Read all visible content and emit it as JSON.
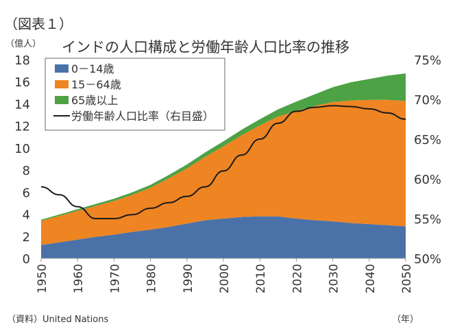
{
  "figure_label": "（図表１）",
  "units_left": "（億人）",
  "units_bottom": "（年）",
  "source": "（資料）United Nations",
  "chart_data": {
    "type": "area",
    "title": "インドの人口構成と労働年齢人口比率の推移",
    "x": [
      1950,
      1955,
      1960,
      1965,
      1970,
      1975,
      1980,
      1985,
      1990,
      1995,
      2000,
      2005,
      2010,
      2015,
      2020,
      2025,
      2030,
      2035,
      2040,
      2045,
      2050
    ],
    "xticks": [
      "1950",
      "1960",
      "1970",
      "1980",
      "1990",
      "2000",
      "2010",
      "2020",
      "2030",
      "2040",
      "2050"
    ],
    "ylim": [
      0,
      18
    ],
    "yticks": [
      "0",
      "2",
      "4",
      "6",
      "8",
      "10",
      "12",
      "14",
      "16",
      "18"
    ],
    "y2lim": [
      50,
      75
    ],
    "y2ticks": [
      "50%",
      "55%",
      "60%",
      "65%",
      "70%",
      "75%"
    ],
    "series": [
      {
        "name": "0－14歳",
        "kind": "area",
        "color": "#4a72a8",
        "values": [
          1.2,
          1.45,
          1.7,
          1.95,
          2.15,
          2.4,
          2.6,
          2.85,
          3.15,
          3.45,
          3.6,
          3.75,
          3.8,
          3.8,
          3.6,
          3.45,
          3.35,
          3.2,
          3.1,
          3.0,
          2.9
        ]
      },
      {
        "name": "15－64歳",
        "kind": "area",
        "color": "#ee8422",
        "values": [
          2.2,
          2.4,
          2.6,
          2.8,
          3.05,
          3.35,
          3.8,
          4.4,
          5.0,
          5.75,
          6.55,
          7.4,
          8.25,
          9.05,
          9.75,
          10.35,
          10.8,
          11.1,
          11.25,
          11.35,
          11.35
        ]
      },
      {
        "name": "65歳以上",
        "kind": "area",
        "color": "#4da245",
        "values": [
          0.1,
          0.12,
          0.15,
          0.18,
          0.2,
          0.23,
          0.26,
          0.3,
          0.35,
          0.4,
          0.45,
          0.5,
          0.55,
          0.65,
          0.85,
          1.05,
          1.35,
          1.65,
          1.9,
          2.2,
          2.5
        ]
      },
      {
        "name": "労働年齢人口比率（右目盛）",
        "kind": "line",
        "color": "#1a1a1a",
        "axis": "right",
        "values": [
          59.0,
          58.0,
          56.5,
          55.0,
          55.0,
          55.5,
          56.3,
          57.0,
          57.8,
          59.0,
          61.0,
          63.0,
          65.0,
          67.0,
          68.5,
          69.0,
          69.2,
          69.1,
          68.8,
          68.3,
          67.5
        ]
      }
    ]
  }
}
